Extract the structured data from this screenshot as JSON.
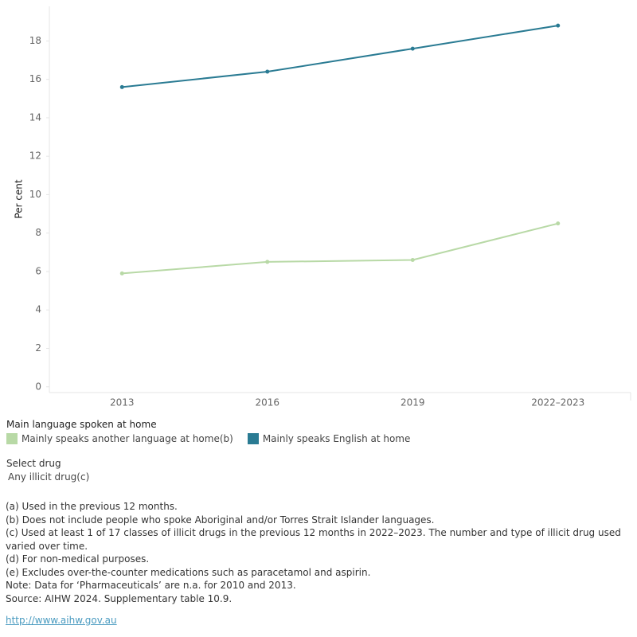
{
  "chart_data": {
    "type": "line",
    "y_label": "Per cent",
    "categories": [
      "2013",
      "2016",
      "2019",
      "2022–2023"
    ],
    "series": [
      {
        "name": "Mainly speaks another language at home(b)",
        "color": "#b8d9a6",
        "values": [
          5.9,
          6.5,
          6.6,
          8.5
        ]
      },
      {
        "name": "Mainly speaks English at home",
        "color": "#2a7b93",
        "values": [
          15.6,
          16.4,
          17.6,
          18.8
        ]
      }
    ],
    "ylim": [
      -0.3,
      19.8
    ],
    "yticks": [
      0,
      2,
      4,
      6,
      8,
      10,
      12,
      14,
      16,
      18
    ],
    "grid": false,
    "legend_title": "Main language spoken at home"
  },
  "filter": {
    "label": "Select drug",
    "value": "Any illicit drug(c)"
  },
  "notes": [
    "(a) Used in the previous 12 months.",
    "(b) Does not include people who spoke Aboriginal and/or Torres Strait Islander languages.",
    "(c) Used at least 1 of 17 classes of illicit drugs in the previous 12 months in 2022–2023. The number and type of illicit drug used varied over time.",
    "(d) For non-medical purposes.",
    "(e) Excludes over-the-counter medications such as paracetamol and aspirin.",
    "Note: Data for ‘Pharmaceuticals’ are n.a. for 2010 and 2013.",
    "Source: AIHW 2024. Supplementary table 10.9."
  ],
  "link": "http://www.aihw.gov.au"
}
